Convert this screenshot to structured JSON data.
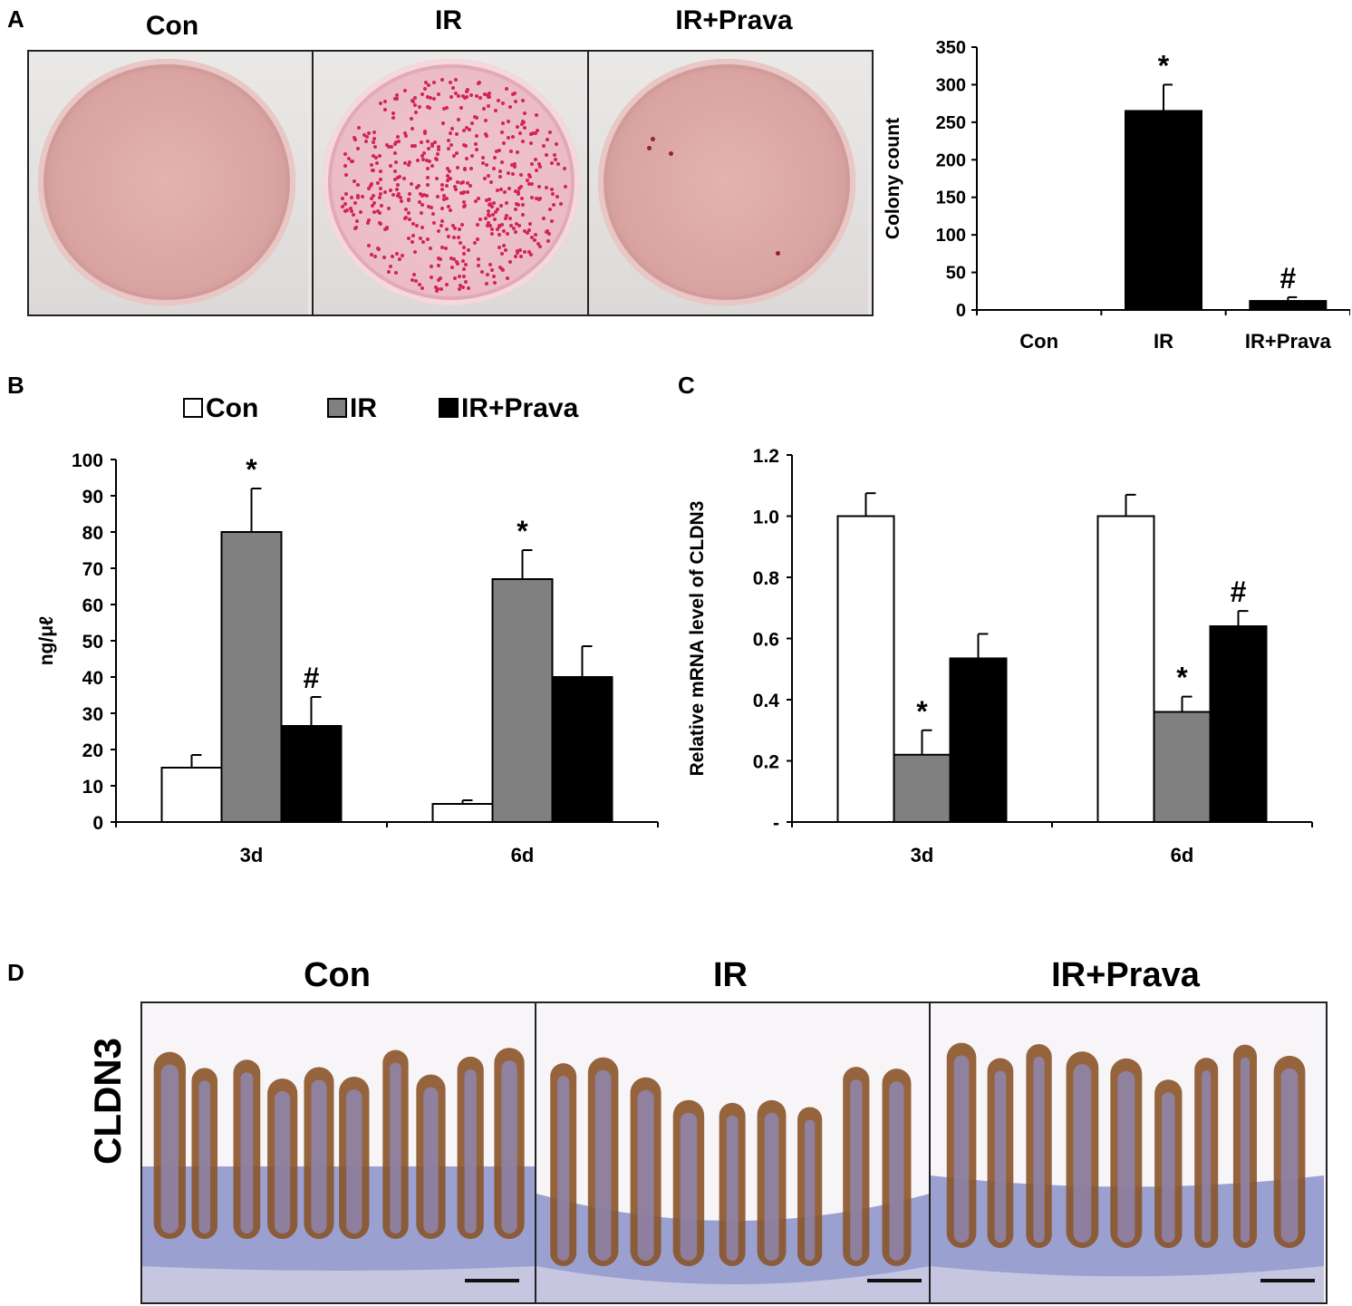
{
  "panels": {
    "a": {
      "letter": "A",
      "plate_titles": [
        "Con",
        "IR",
        "IR+Prava"
      ]
    },
    "b": {
      "letter": "B"
    },
    "c": {
      "letter": "C"
    },
    "d": {
      "letter": "D",
      "titles": [
        "Con",
        "IR",
        "IR+Prava"
      ],
      "row_label": "CLDN3"
    }
  },
  "colors": {
    "con": "#ffffff",
    "ir": "#808080",
    "ir_prava": "#000000",
    "plate_colony": "#d2245a",
    "tissue_brown": "#8a5428",
    "tissue_blue": "#9aa0d0"
  },
  "chart_data": [
    {
      "type": "bar",
      "panel": "A",
      "categories": [
        "Con",
        "IR",
        "IR+Prava"
      ],
      "values": [
        0,
        265,
        12
      ],
      "errors": [
        0,
        35,
        5
      ],
      "annotations": [
        "",
        "*",
        "#"
      ],
      "ylabel": "Colony count",
      "ylim": [
        0,
        350
      ],
      "yticks": [
        "0",
        "50",
        "100",
        "150",
        "200",
        "250",
        "300",
        "350"
      ]
    },
    {
      "type": "bar",
      "panel": "B",
      "categories": [
        "3d",
        "6d"
      ],
      "series": [
        {
          "name": "Con",
          "values": [
            15,
            5
          ],
          "errors": [
            3.5,
            1
          ],
          "annotations": [
            "",
            ""
          ]
        },
        {
          "name": "IR",
          "values": [
            80,
            67
          ],
          "errors": [
            12,
            8
          ],
          "annotations": [
            "*",
            "*"
          ]
        },
        {
          "name": "IR+Prava",
          "values": [
            26.5,
            40
          ],
          "errors": [
            8,
            8.5
          ],
          "annotations": [
            "#",
            ""
          ]
        }
      ],
      "ylabel": "ng/μℓ",
      "ylim": [
        0,
        100
      ],
      "yticks": [
        "0",
        "10",
        "20",
        "30",
        "40",
        "50",
        "60",
        "70",
        "80",
        "90",
        "100"
      ],
      "legend": "top"
    },
    {
      "type": "bar",
      "panel": "C",
      "categories": [
        "3d",
        "6d"
      ],
      "series": [
        {
          "name": "Con",
          "values": [
            1.0,
            1.0
          ],
          "errors": [
            0.075,
            0.07
          ],
          "annotations": [
            "",
            ""
          ]
        },
        {
          "name": "IR",
          "values": [
            0.22,
            0.36
          ],
          "errors": [
            0.08,
            0.05
          ],
          "annotations": [
            "*",
            "*"
          ]
        },
        {
          "name": "IR+Prava",
          "values": [
            0.535,
            0.64
          ],
          "errors": [
            0.08,
            0.05
          ],
          "annotations": [
            "",
            "#"
          ]
        }
      ],
      "ylabel": "Relative mRNA level of CLDN3",
      "ylim": [
        0,
        1.2
      ],
      "yticks": [
        "-",
        "0.2",
        "0.4",
        "0.6",
        "0.8",
        "1.0",
        "1.2"
      ]
    }
  ]
}
